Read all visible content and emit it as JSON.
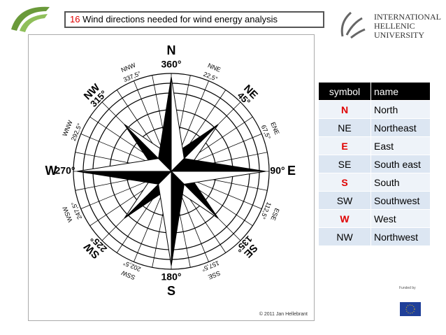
{
  "header": {
    "number": "16",
    "title": "Wind directions needed for wind energy analysis"
  },
  "university": {
    "lines": [
      "INTERNATIONAL",
      "HELLENIC",
      "UNIVERSITY"
    ]
  },
  "compass": {
    "labels": [
      {
        "name": "N",
        "degree": "360°"
      },
      {
        "name": "NNE",
        "degree": "22,5°"
      },
      {
        "name": "NE",
        "degree": "45°"
      },
      {
        "name": "ENE",
        "degree": "67,5°"
      },
      {
        "name": "E",
        "degree": "90°"
      },
      {
        "name": "ESE",
        "degree": "112,5°"
      },
      {
        "name": "SE",
        "degree": "135°"
      },
      {
        "name": "SSE",
        "degree": "157,5°"
      },
      {
        "name": "S",
        "degree": "180°"
      },
      {
        "name": "SSW",
        "degree": "202,5°"
      },
      {
        "name": "SW",
        "degree": "225°"
      },
      {
        "name": "WSW",
        "degree": "247,5°"
      },
      {
        "name": "W",
        "degree": "270°"
      },
      {
        "name": "WNW",
        "degree": "292,5°"
      },
      {
        "name": "NW",
        "degree": "315°"
      },
      {
        "name": "NNW",
        "degree": "337,5°"
      }
    ],
    "copyright": "© 2011 Jan Hellebrant"
  },
  "table": {
    "header": [
      "symbol",
      "name"
    ],
    "rows": [
      [
        "N",
        "North"
      ],
      [
        "NE",
        "Northeast"
      ],
      [
        "E",
        "East"
      ],
      [
        "SE",
        "South east"
      ],
      [
        "S",
        "South"
      ],
      [
        "SW",
        "Southwest"
      ],
      [
        "W",
        "West"
      ],
      [
        "NW",
        "Northwest"
      ]
    ]
  },
  "footer": {
    "funded": "Funded by"
  }
}
